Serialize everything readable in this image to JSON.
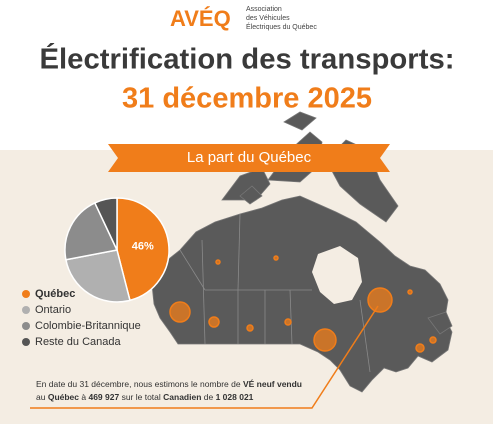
{
  "logo": {
    "brand": "AVÉQ",
    "org": [
      "Association",
      "des Véhicules",
      "Électriques du Québec"
    ]
  },
  "title": [
    "Électrification des transports:",
    "31 décembre 2025"
  ],
  "ribbon": "La part du Québec",
  "chart_data": {
    "type": "pie",
    "categories": [
      "Québec",
      "Ontario",
      "Colombie-Britannique",
      "Reste du Canada"
    ],
    "values": [
      46,
      26,
      21,
      7
    ],
    "value_labels": [
      "46%",
      null,
      null,
      null
    ],
    "colors": [
      "#f07d1a",
      "#b0b0b0",
      "#8c8c8c",
      "#555555"
    ]
  },
  "footnote": [
    [
      {
        "text": "En date du 31 décembre, nous estimons le nombre de ",
        "bold": false
      },
      {
        "text": "VÉ neuf vendu",
        "bold": true
      }
    ],
    [
      {
        "text": "au ",
        "bold": false
      },
      {
        "text": "Québec",
        "bold": true
      },
      {
        "text": " à ",
        "bold": false
      },
      {
        "text": "469 927",
        "bold": true
      },
      {
        "text": " sur le total ",
        "bold": false
      },
      {
        "text": "Canadien",
        "bold": true
      },
      {
        "text": " de ",
        "bold": false
      },
      {
        "text": "1 028 021",
        "bold": true
      }
    ]
  ]
}
